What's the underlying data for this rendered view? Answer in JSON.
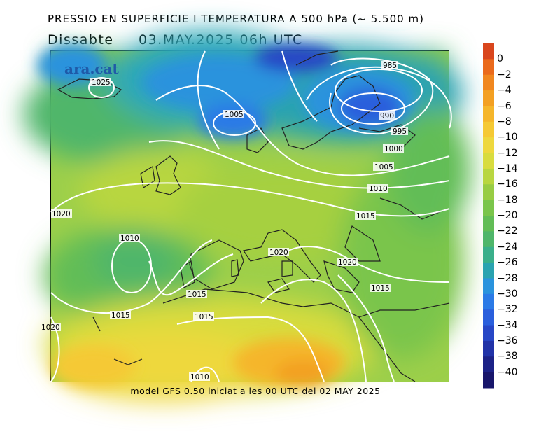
{
  "header": {
    "title": "PRESSIO EN SUPERFICIE I TEMPERATURA A 500 hPa (~ 5.500 m)",
    "day": "Dissabte",
    "date": "03.MAY.2025 06h UTC"
  },
  "logo": "ara.cat",
  "footer": "model GFS 0.50 iniciat a les 00 UTC del 02 MAY 2025",
  "isobar_labels": [
    "1025",
    "1005",
    "985",
    "990",
    "995",
    "1000",
    "1005",
    "1010",
    "1015",
    "1020",
    "1010",
    "1020",
    "1015",
    "1020",
    "1015",
    "1015",
    "1015",
    "1010",
    "1020"
  ],
  "colorbar": {
    "labels": [
      "0",
      "−2",
      "−4",
      "−6",
      "−8",
      "−10",
      "−12",
      "−14",
      "−16",
      "−18",
      "−20",
      "−22",
      "−24",
      "−26",
      "−28",
      "−30",
      "−32",
      "−34",
      "−36",
      "−38",
      "−40"
    ],
    "colors": [
      "#d9461d",
      "#ea6a1c",
      "#f0871f",
      "#f3a023",
      "#f5b62b",
      "#f5c934",
      "#eed83d",
      "#d8dc3e",
      "#b8d63f",
      "#97cc43",
      "#7ac54b",
      "#62bd56",
      "#4fb66a",
      "#3aaf8a",
      "#2aa3b0",
      "#2a93dd",
      "#2b7ae6",
      "#2a5fdc",
      "#2747c6",
      "#2133a8",
      "#1c2287",
      "#18166b"
    ]
  }
}
